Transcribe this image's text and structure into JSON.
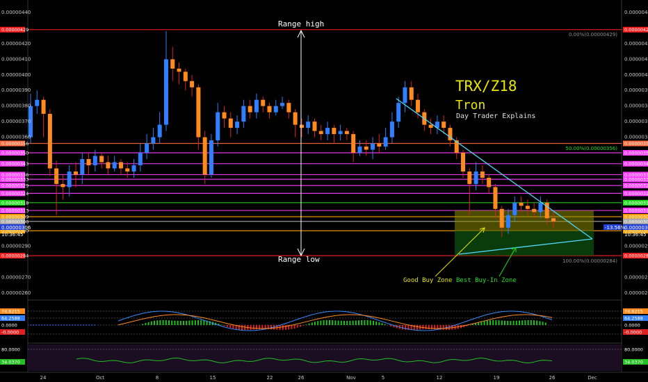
{
  "chart_data": {
    "type": "candlestick",
    "title": "TRX/Z18",
    "subtitle": "Tron",
    "caption": "Day Trader Explains",
    "ylim": [
      2.55e-06,
      4.46e-06
    ],
    "y_ticks": [
      "0.00000440",
      "0.00000420",
      "0.00000410",
      "0.00000400",
      "0.00000390",
      "0.00000380",
      "0.00000370",
      "0.00000360",
      "0.00000290",
      "0.00000270",
      "0.00000260"
    ],
    "x_ticks": [
      "24",
      "Oct",
      "8",
      "15",
      "22",
      "26",
      "Nov",
      "5",
      "12",
      "19",
      "26",
      "Dec"
    ],
    "level_lines": [
      {
        "price": 4.29e-06,
        "label": "0.00000429",
        "color": "#ff1e1e"
      },
      {
        "price": 3.56e-06,
        "label": "0.00000356",
        "color": "#ff6a3a"
      },
      {
        "price": 3.5e-06,
        "label": "0.00000350",
        "color": "#ff3cff"
      },
      {
        "price": 3.43e-06,
        "label": "0.00000343",
        "color": "#ff3cff"
      },
      {
        "price": 3.36e-06,
        "label": "0.00000336",
        "color": "#ff3cff"
      },
      {
        "price": 3.33e-06,
        "label": "0.00000333",
        "color": "#ff3cff"
      },
      {
        "price": 3.29e-06,
        "label": "0.00000329",
        "color": "#ff3cff"
      },
      {
        "price": 3.24e-06,
        "label": "0.00000324",
        "color": "#ff3cff"
      },
      {
        "price": 3.18e-06,
        "label": "0.00000318",
        "color": "#22e022"
      },
      {
        "price": 3.13e-06,
        "label": "0.00000313",
        "color": "#ff3cff"
      },
      {
        "price": 3.09e-06,
        "label": "0.00000309",
        "color": "#ffa000"
      },
      {
        "price": 3.06e-06,
        "label": "0.00000306",
        "color": "#aaaaaa"
      },
      {
        "price": 3e-06,
        "label": "0.00000300",
        "color": "#ffa000"
      },
      {
        "price": 2.84e-06,
        "label": "0.00000284",
        "color": "#ff1e1e"
      }
    ],
    "price_label": {
      "value": "0.00000306",
      "countdown": "10:36:45",
      "change": "-13.56%"
    },
    "fib_labels": [
      "0.00%(0.00000429)",
      "50.00%(0.00000356)",
      "100.00%(0.00000284)"
    ],
    "annotations": {
      "range_high": "Range high",
      "range_low": "Range low",
      "good_buy_zone": "Good Buy Zone",
      "best_buy_zone": "Best Buy-In Zone"
    },
    "candles": [
      [
        3.6e-06,
        3.8e-06,
        3.88e-06,
        3.56e-06
      ],
      [
        3.8e-06,
        3.84e-06,
        3.9e-06,
        3.75e-06
      ],
      [
        3.84e-06,
        3.75e-06,
        3.86e-06,
        3.6e-06
      ],
      [
        3.75e-06,
        3.4e-06,
        3.78e-06,
        3.35e-06
      ],
      [
        3.4e-06,
        3.3e-06,
        3.45e-06,
        3.1e-06
      ],
      [
        3.3e-06,
        3.28e-06,
        3.36e-06,
        3.2e-06
      ],
      [
        3.28e-06,
        3.38e-06,
        3.42e-06,
        3.22e-06
      ],
      [
        3.38e-06,
        3.36e-06,
        3.44e-06,
        3.28e-06
      ],
      [
        3.36e-06,
        3.46e-06,
        3.5e-06,
        3.3e-06
      ],
      [
        3.46e-06,
        3.42e-06,
        3.5e-06,
        3.36e-06
      ],
      [
        3.42e-06,
        3.48e-06,
        3.52e-06,
        3.38e-06
      ],
      [
        3.48e-06,
        3.44e-06,
        3.5e-06,
        3.4e-06
      ],
      [
        3.44e-06,
        3.4e-06,
        3.48e-06,
        3.36e-06
      ],
      [
        3.4e-06,
        3.44e-06,
        3.48e-06,
        3.38e-06
      ],
      [
        3.44e-06,
        3.4e-06,
        3.46e-06,
        3.36e-06
      ],
      [
        3.4e-06,
        3.38e-06,
        3.44e-06,
        3.34e-06
      ],
      [
        3.38e-06,
        3.42e-06,
        3.46e-06,
        3.34e-06
      ],
      [
        3.42e-06,
        3.5e-06,
        3.56e-06,
        3.38e-06
      ],
      [
        3.5e-06,
        3.56e-06,
        3.62e-06,
        3.46e-06
      ],
      [
        3.56e-06,
        3.6e-06,
        3.66e-06,
        3.52e-06
      ],
      [
        3.6e-06,
        3.68e-06,
        3.76e-06,
        3.56e-06
      ],
      [
        3.68e-06,
        4.1e-06,
        4.28e-06,
        3.64e-06
      ],
      [
        4.1e-06,
        4.04e-06,
        4.18e-06,
        3.96e-06
      ],
      [
        4.04e-06,
        4.02e-06,
        4.08e-06,
        3.94e-06
      ],
      [
        4.02e-06,
        3.96e-06,
        4.04e-06,
        3.9e-06
      ],
      [
        3.96e-06,
        3.92e-06,
        4e-06,
        3.86e-06
      ],
      [
        3.92e-06,
        3.6e-06,
        3.94e-06,
        3.52e-06
      ],
      [
        3.6e-06,
        3.36e-06,
        3.64e-06,
        3.3e-06
      ],
      [
        3.36e-06,
        3.58e-06,
        3.62e-06,
        3.34e-06
      ],
      [
        3.58e-06,
        3.76e-06,
        3.82e-06,
        3.54e-06
      ],
      [
        3.76e-06,
        3.72e-06,
        3.8e-06,
        3.66e-06
      ],
      [
        3.72e-06,
        3.66e-06,
        3.76e-06,
        3.6e-06
      ],
      [
        3.66e-06,
        3.7e-06,
        3.74e-06,
        3.62e-06
      ],
      [
        3.7e-06,
        3.8e-06,
        3.84e-06,
        3.66e-06
      ],
      [
        3.8e-06,
        3.76e-06,
        3.84e-06,
        3.72e-06
      ],
      [
        3.76e-06,
        3.84e-06,
        3.88e-06,
        3.72e-06
      ],
      [
        3.84e-06,
        3.8e-06,
        3.86e-06,
        3.76e-06
      ],
      [
        3.8e-06,
        3.76e-06,
        3.82e-06,
        3.72e-06
      ],
      [
        3.76e-06,
        3.8e-06,
        3.84e-06,
        3.74e-06
      ],
      [
        3.8e-06,
        3.82e-06,
        3.86e-06,
        3.78e-06
      ],
      [
        3.82e-06,
        3.76e-06,
        3.84e-06,
        3.72e-06
      ],
      [
        3.76e-06,
        3.68e-06,
        3.78e-06,
        3.6e-06
      ],
      [
        3.68e-06,
        3.66e-06,
        3.72e-06,
        3.6e-06
      ],
      [
        3.66e-06,
        3.7e-06,
        3.74e-06,
        3.62e-06
      ],
      [
        3.7e-06,
        3.64e-06,
        3.72e-06,
        3.6e-06
      ],
      [
        3.64e-06,
        3.62e-06,
        3.68e-06,
        3.58e-06
      ],
      [
        3.62e-06,
        3.66e-06,
        3.7e-06,
        3.58e-06
      ],
      [
        3.66e-06,
        3.62e-06,
        3.68e-06,
        3.56e-06
      ],
      [
        3.62e-06,
        3.64e-06,
        3.68e-06,
        3.58e-06
      ],
      [
        3.64e-06,
        3.62e-06,
        3.66e-06,
        3.58e-06
      ],
      [
        3.62e-06,
        3.5e-06,
        3.64e-06,
        3.44e-06
      ],
      [
        3.5e-06,
        3.54e-06,
        3.58e-06,
        3.48e-06
      ],
      [
        3.54e-06,
        3.52e-06,
        3.58e-06,
        3.48e-06
      ],
      [
        3.52e-06,
        3.56e-06,
        3.6e-06,
        3.46e-06
      ],
      [
        3.56e-06,
        3.54e-06,
        3.62e-06,
        3.5e-06
      ],
      [
        3.54e-06,
        3.6e-06,
        3.66e-06,
        3.52e-06
      ],
      [
        3.6e-06,
        3.7e-06,
        3.76e-06,
        3.56e-06
      ],
      [
        3.7e-06,
        3.82e-06,
        3.86e-06,
        3.66e-06
      ],
      [
        3.82e-06,
        3.92e-06,
        3.96e-06,
        3.76e-06
      ],
      [
        3.92e-06,
        3.84e-06,
        3.96e-06,
        3.8e-06
      ],
      [
        3.84e-06,
        3.76e-06,
        3.88e-06,
        3.72e-06
      ],
      [
        3.76e-06,
        3.68e-06,
        3.78e-06,
        3.64e-06
      ],
      [
        3.68e-06,
        3.66e-06,
        3.72e-06,
        3.62e-06
      ],
      [
        3.66e-06,
        3.7e-06,
        3.74e-06,
        3.62e-06
      ],
      [
        3.7e-06,
        3.66e-06,
        3.74e-06,
        3.62e-06
      ],
      [
        3.66e-06,
        3.58e-06,
        3.68e-06,
        3.54e-06
      ],
      [
        3.58e-06,
        3.5e-06,
        3.6e-06,
        3.46e-06
      ],
      [
        3.5e-06,
        3.38e-06,
        3.52e-06,
        3.34e-06
      ],
      [
        3.38e-06,
        3.3e-06,
        3.4e-06,
        3.1e-06
      ],
      [
        3.3e-06,
        3.38e-06,
        3.44e-06,
        3.26e-06
      ],
      [
        3.38e-06,
        3.34e-06,
        3.42e-06,
        3.3e-06
      ],
      [
        3.34e-06,
        3.28e-06,
        3.36e-06,
        3.24e-06
      ],
      [
        3.28e-06,
        3.14e-06,
        3.3e-06,
        3.08e-06
      ],
      [
        3.14e-06,
        3.02e-06,
        3.16e-06,
        2.96e-06
      ],
      [
        3.02e-06,
        3.1e-06,
        3.14e-06,
        2.98e-06
      ],
      [
        3.1e-06,
        3.18e-06,
        3.22e-06,
        3.06e-06
      ],
      [
        3.18e-06,
        3.16e-06,
        3.22e-06,
        3.12e-06
      ],
      [
        3.16e-06,
        3.14e-06,
        3.2e-06,
        3.1e-06
      ],
      [
        3.14e-06,
        3.12e-06,
        3.18e-06,
        3.08e-06
      ],
      [
        3.12e-06,
        3.18e-06,
        3.22e-06,
        3.08e-06
      ],
      [
        3.18e-06,
        3.08e-06,
        3.2e-06,
        3.04e-06
      ],
      [
        3.08e-06,
        3.06e-06,
        3.12e-06,
        3.02e-06
      ]
    ],
    "indicators": {
      "macd_labels": [
        "74.6215",
        "64.2588",
        "0.0000",
        "-0.0000"
      ],
      "rsi_labels": [
        "80.0000",
        "34.0370"
      ]
    }
  }
}
